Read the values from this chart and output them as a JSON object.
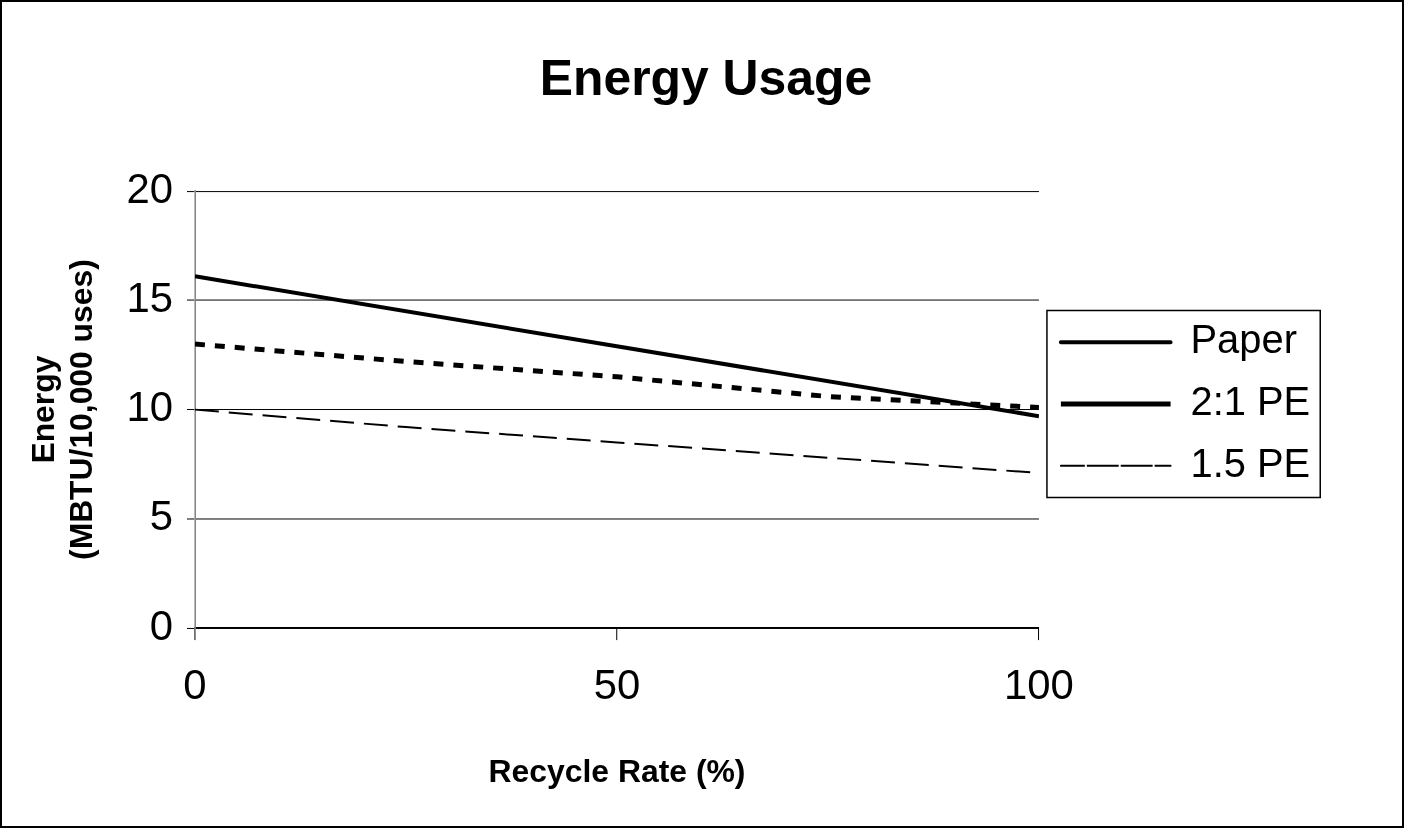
{
  "chart_data": {
    "type": "line",
    "title": "Energy Usage",
    "xlabel": "Recycle Rate (%)",
    "ylabel": "Energy\n(MBTU/10,000 uses)",
    "xlim": [
      0,
      100
    ],
    "xticks": [
      0,
      50,
      100
    ],
    "ylim": [
      0,
      20
    ],
    "yticks": [
      0,
      5,
      10,
      15,
      20
    ],
    "grid": "y",
    "legend": "right",
    "marker": "none",
    "series": [
      {
        "name": "Paper",
        "color": "#000000",
        "line_style": "solid",
        "x": [
          0,
          100
        ],
        "values": [
          16.1,
          9.7
        ]
      },
      {
        "name": "2:1 PE",
        "color": "#000000",
        "line_style": "dotted",
        "x": [
          0,
          25,
          50,
          75,
          100
        ],
        "values": [
          13,
          12.2,
          11.5,
          10.6,
          10.1
        ]
      },
      {
        "name": "1.5 PE",
        "color": "#000000",
        "line_style": "dashed",
        "x": [
          0,
          25,
          50,
          75,
          100
        ],
        "values": [
          10,
          9.2,
          8.5,
          7.8,
          7.1
        ]
      }
    ]
  }
}
